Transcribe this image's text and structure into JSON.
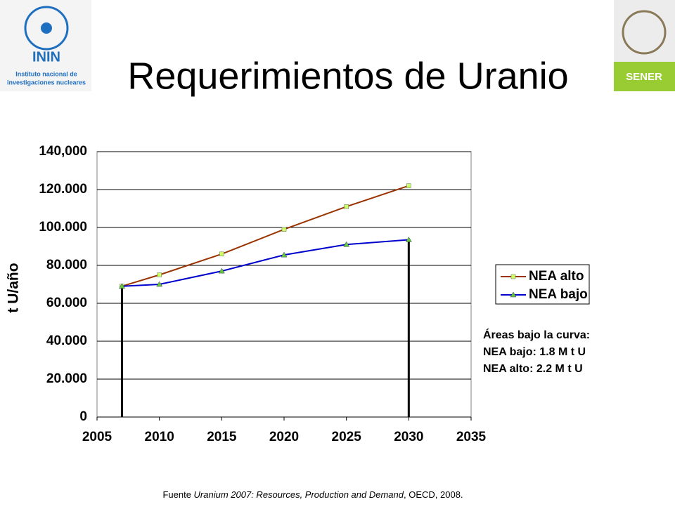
{
  "header": {
    "logo_left": "ININ",
    "logo_left_line1": "Instituto nacional de",
    "logo_left_line2": "investigaciones nucleares",
    "logo_right": "SENER"
  },
  "chart_data": {
    "type": "line",
    "title": "Requerimientos de Uranio",
    "y_label": "t U/año",
    "x": [
      2007,
      2010,
      2015,
      2020,
      2025,
      2030
    ],
    "series": [
      {
        "name": "NEA alto",
        "color": "#993300",
        "marker": "square",
        "marker_color": "#ccff66",
        "values": [
          69000,
          75000,
          86000,
          99000,
          111000,
          122000
        ]
      },
      {
        "name": "NEA bajo",
        "color": "#0000cc",
        "marker": "triangle",
        "marker_color": "#66cc33",
        "values": [
          69000,
          70000,
          77000,
          85500,
          91000,
          93500
        ]
      }
    ],
    "xlim": [
      2005,
      2035
    ],
    "xticks": [
      2005,
      2010,
      2015,
      2020,
      2025,
      2030,
      2035
    ],
    "ylim": [
      0,
      140000
    ],
    "yticks": [
      0,
      {
        "value": 20000,
        "label": "20.000"
      },
      {
        "value": 40000,
        "label": "40.000"
      },
      {
        "value": 60000,
        "label": "60.000"
      },
      {
        "value": 80000,
        "label": "80.000"
      },
      {
        "value": 100000,
        "label": "100.000"
      },
      {
        "value": 120000,
        "label": "120.000"
      },
      {
        "value": 140000,
        "label": "140,000"
      }
    ],
    "grid": true,
    "legend": "right",
    "annotations": [
      "Áreas bajo la curva:",
      "NEA bajo: 1.8 M t U",
      "NEA alto:  2.2 M t U"
    ]
  },
  "source": {
    "prefix": "Fuente ",
    "work": "Uranium 2007: Resources, Production and Demand",
    "suffix": ", OECD, 2008."
  }
}
